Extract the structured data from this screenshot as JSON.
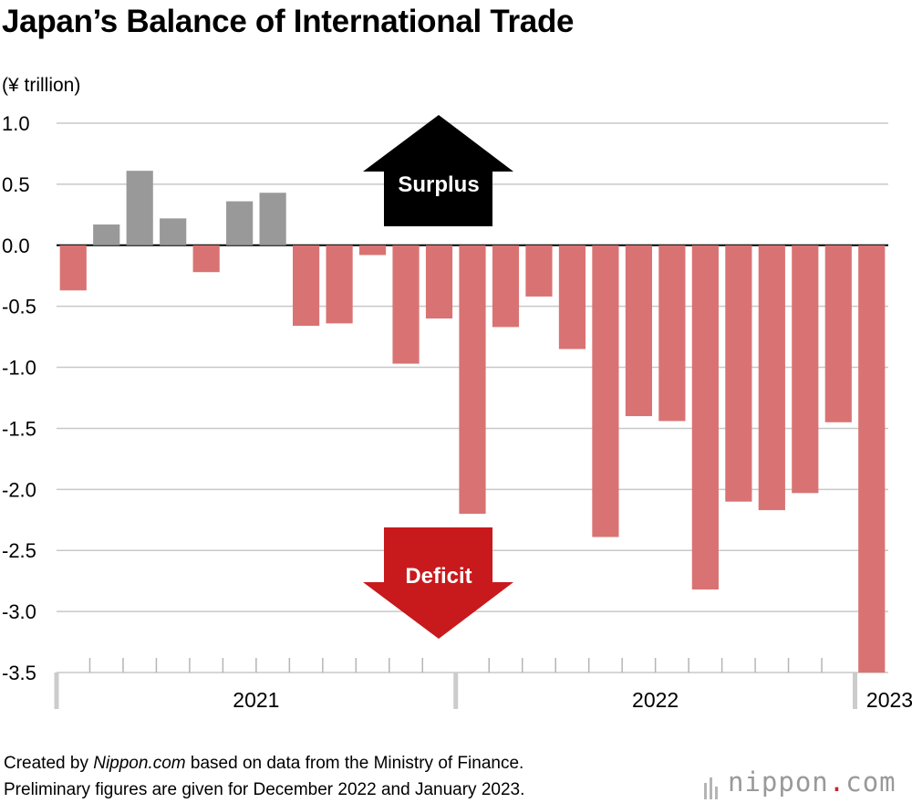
{
  "title": "Japan’s Balance of International Trade",
  "unit_label": "(¥ trillion)",
  "chart_data": {
    "type": "bar",
    "ylabel": "(¥ trillion)",
    "ylim": [
      -3.5,
      1.0
    ],
    "yticks": [
      "1.0",
      "0.5",
      "0.0",
      "-0.5",
      "-1.0",
      "-1.5",
      "-2.0",
      "-2.5",
      "-3.0",
      "-3.5"
    ],
    "grid": true,
    "period_labels": [
      {
        "label": "2021",
        "start_index": 0,
        "months": 12
      },
      {
        "label": "2022",
        "start_index": 12,
        "months": 12
      },
      {
        "label": "2023",
        "start_index": 24,
        "months": 1
      }
    ],
    "values": [
      -0.37,
      0.17,
      0.61,
      0.22,
      -0.22,
      0.36,
      0.43,
      -0.66,
      -0.64,
      -0.08,
      -0.97,
      -0.6,
      -2.2,
      -0.67,
      -0.42,
      -0.85,
      -2.39,
      -1.4,
      -1.44,
      -2.82,
      -2.1,
      -2.17,
      -2.03,
      -1.45,
      -3.5
    ],
    "colors": {
      "surplus": "#999999",
      "deficit": "#d97373"
    },
    "annotations": {
      "surplus": {
        "label": "Surplus",
        "color": "#000000"
      },
      "deficit": {
        "label": "Deficit",
        "color": "#c8191c"
      }
    }
  },
  "footer": {
    "line1_prefix": "Created by ",
    "line1_source": "Nippon.com",
    "line1_suffix": " based on data from the Ministry of Finance.",
    "line2": "Preliminary figures are given for December 2022 and January 2023."
  },
  "logo": {
    "name": "nippon",
    "dot": ".",
    "tld": "com"
  }
}
